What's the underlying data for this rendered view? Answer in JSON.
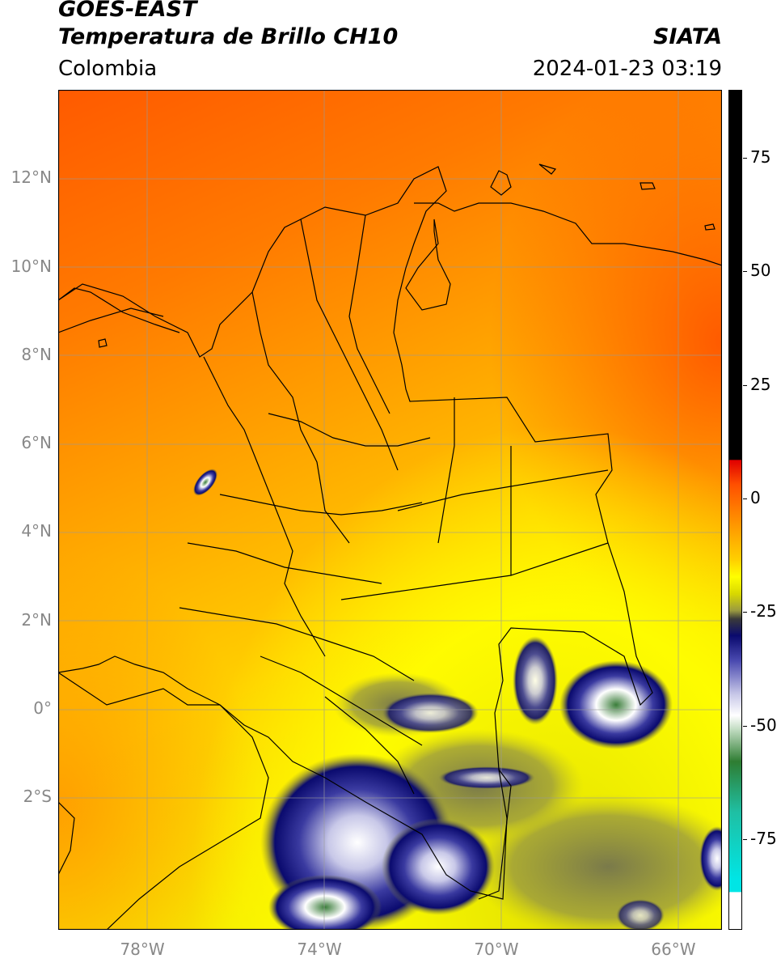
{
  "header": {
    "title_line1": "GOES-EAST",
    "title_line2": "Temperatura de Brillo CH10",
    "brand": "SIATA",
    "region": "Colombia",
    "timestamp": "2024-01-23 03:19"
  },
  "map": {
    "lon_range": [
      -80,
      -65
    ],
    "lat_range": [
      -5,
      14
    ],
    "lat_labels": [
      "12°N",
      "10°N",
      "8°N",
      "6°N",
      "4°N",
      "2°N",
      "0°",
      "2°S"
    ],
    "lat_values": [
      12,
      10,
      8,
      6,
      4,
      2,
      0,
      -2
    ],
    "lon_labels": [
      "78°W",
      "74°W",
      "70°W",
      "66°W"
    ],
    "lon_values": [
      -78,
      -74,
      -70,
      -66
    ],
    "grid": true
  },
  "colorbar": {
    "range": [
      -95,
      90
    ],
    "ticks": [
      {
        "value": 75,
        "label": "75"
      },
      {
        "value": 50,
        "label": "50"
      },
      {
        "value": 25,
        "label": "25"
      },
      {
        "value": 0,
        "label": "0"
      },
      {
        "value": -25,
        "label": "-25"
      },
      {
        "value": -50,
        "label": "-50"
      },
      {
        "value": -75,
        "label": "-75"
      }
    ],
    "colors": {
      "black": "#000000",
      "red": "#ff2a00",
      "orange": "#ff8c00",
      "yellow": "#ffff00",
      "olive": "#8c8c3a",
      "navy": "#0a0a6e",
      "white": "#ffffff",
      "green": "#2e7d32",
      "teal": "#1fbfa3",
      "cyan": "#00e5e5"
    }
  }
}
